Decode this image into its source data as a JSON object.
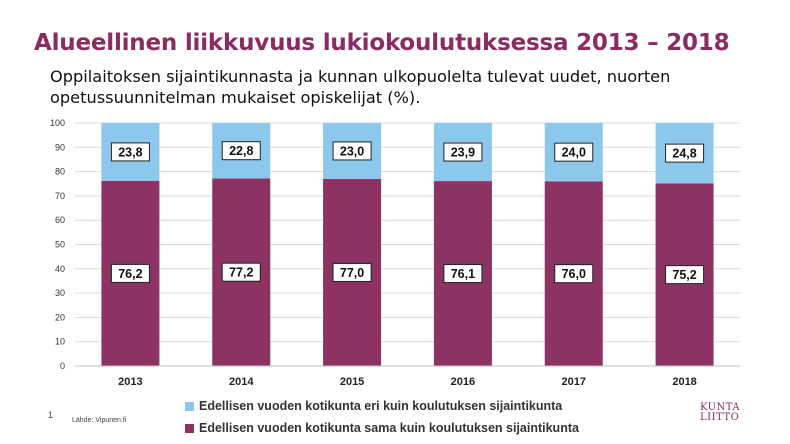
{
  "slide": {
    "title": "Alueellinen liikkuvuus lukiokoulutuksessa 2013 – 2018",
    "subtitle": "Oppilaitoksen sijaintikunnasta ja kunnan ulkopuolelta tulevat uudet, nuorten opetussuunnitelman mukaiset opiskelijat (%).",
    "page_number": "1",
    "source": "Lähde: Vipunen.fi",
    "logo_line1": "KUNTA",
    "logo_line2": "LIITTO"
  },
  "chart_data": {
    "type": "bar",
    "stacked": true,
    "categories": [
      "2013",
      "2014",
      "2015",
      "2016",
      "2017",
      "2018"
    ],
    "series": [
      {
        "name": "Edellisen vuoden kotikunta sama kuin koulutuksen sijaintikunta",
        "color": "#8c3363",
        "values": [
          76.2,
          77.2,
          77.0,
          76.1,
          76.0,
          75.2
        ],
        "labels": [
          "76,2",
          "77,2",
          "77,0",
          "76,1",
          "76,0",
          "75,2"
        ]
      },
      {
        "name": "Edellisen vuoden kotikunta eri kuin koulutuksen sijaintikunta",
        "color": "#8cc8ec",
        "values": [
          23.8,
          22.8,
          23.0,
          23.9,
          24.0,
          24.8
        ],
        "labels": [
          "23,8",
          "22,8",
          "23,0",
          "23,9",
          "24,0",
          "24,8"
        ]
      }
    ],
    "ylim": [
      0,
      100
    ],
    "yticks": [
      "0",
      "10",
      "20",
      "30",
      "40",
      "50",
      "60",
      "70",
      "80",
      "90",
      "100"
    ],
    "grid": true,
    "legend_position": "bottom"
  }
}
